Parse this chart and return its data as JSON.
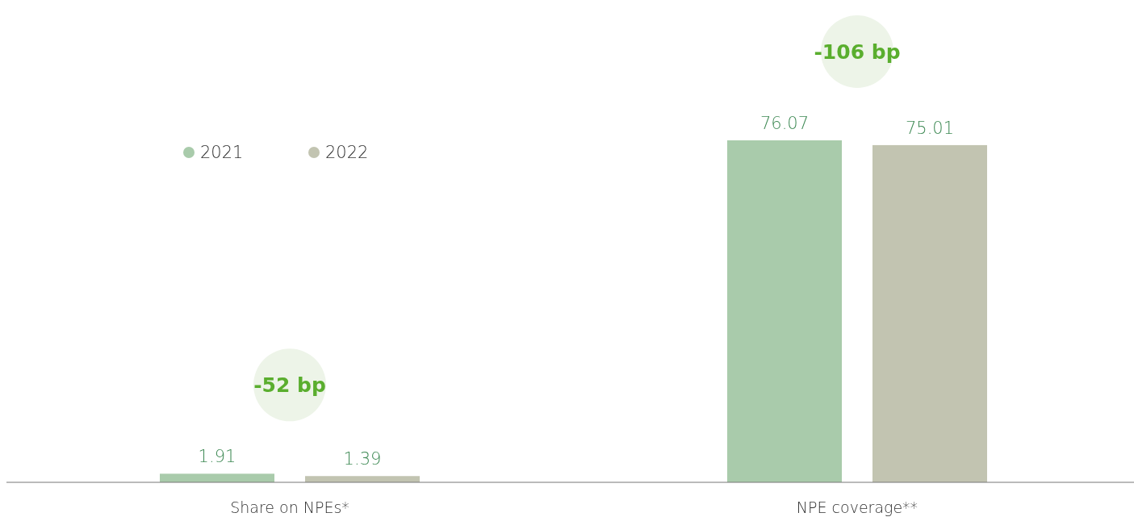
{
  "chart_data": {
    "type": "bar",
    "categories": [
      "Share on NPEs*",
      "NPE coverage**"
    ],
    "series": [
      {
        "name": "2021",
        "color": "#a9cbab",
        "values": [
          1.91,
          76.07
        ]
      },
      {
        "name": "2022",
        "color": "#c2c4b1",
        "values": [
          1.39,
          75.01
        ]
      }
    ],
    "data_labels": true,
    "legend": "top left",
    "annotations": [
      "-52 bp",
      "-106 bp"
    ]
  }
}
